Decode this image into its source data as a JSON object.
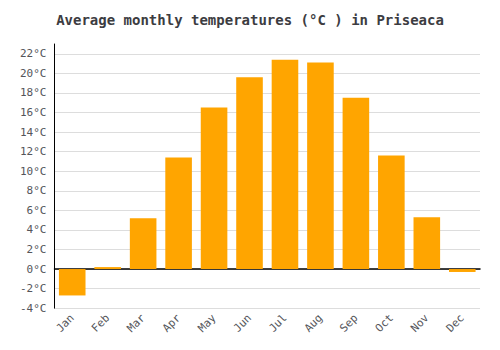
{
  "chart_data": {
    "type": "bar",
    "title": "Average monthly temperatures (°C ) in Priseaca",
    "categories": [
      "Jan",
      "Feb",
      "Mar",
      "Apr",
      "May",
      "Jun",
      "Jul",
      "Aug",
      "Sep",
      "Oct",
      "Nov",
      "Dec"
    ],
    "values": [
      -2.7,
      0.2,
      5.2,
      11.4,
      16.5,
      19.6,
      21.4,
      21.1,
      17.5,
      11.6,
      5.3,
      -0.3
    ],
    "color": "#FFA500",
    "ylim": [
      -4,
      23
    ],
    "yticks": [
      {
        "value": -4,
        "label": "-4°C"
      },
      {
        "value": -2,
        "label": "-2°C"
      },
      {
        "value": 0,
        "label": "0°C"
      },
      {
        "value": 2,
        "label": "2°C"
      },
      {
        "value": 4,
        "label": "4°C"
      },
      {
        "value": 6,
        "label": "6°C"
      },
      {
        "value": 8,
        "label": "8°C"
      },
      {
        "value": 10,
        "label": "10°C"
      },
      {
        "value": 12,
        "label": "12°C"
      },
      {
        "value": 14,
        "label": "14°C"
      },
      {
        "value": 16,
        "label": "16°C"
      },
      {
        "value": 18,
        "label": "18°C"
      },
      {
        "value": 20,
        "label": "20°C"
      },
      {
        "value": 22,
        "label": "22°C"
      }
    ],
    "grid": true
  }
}
